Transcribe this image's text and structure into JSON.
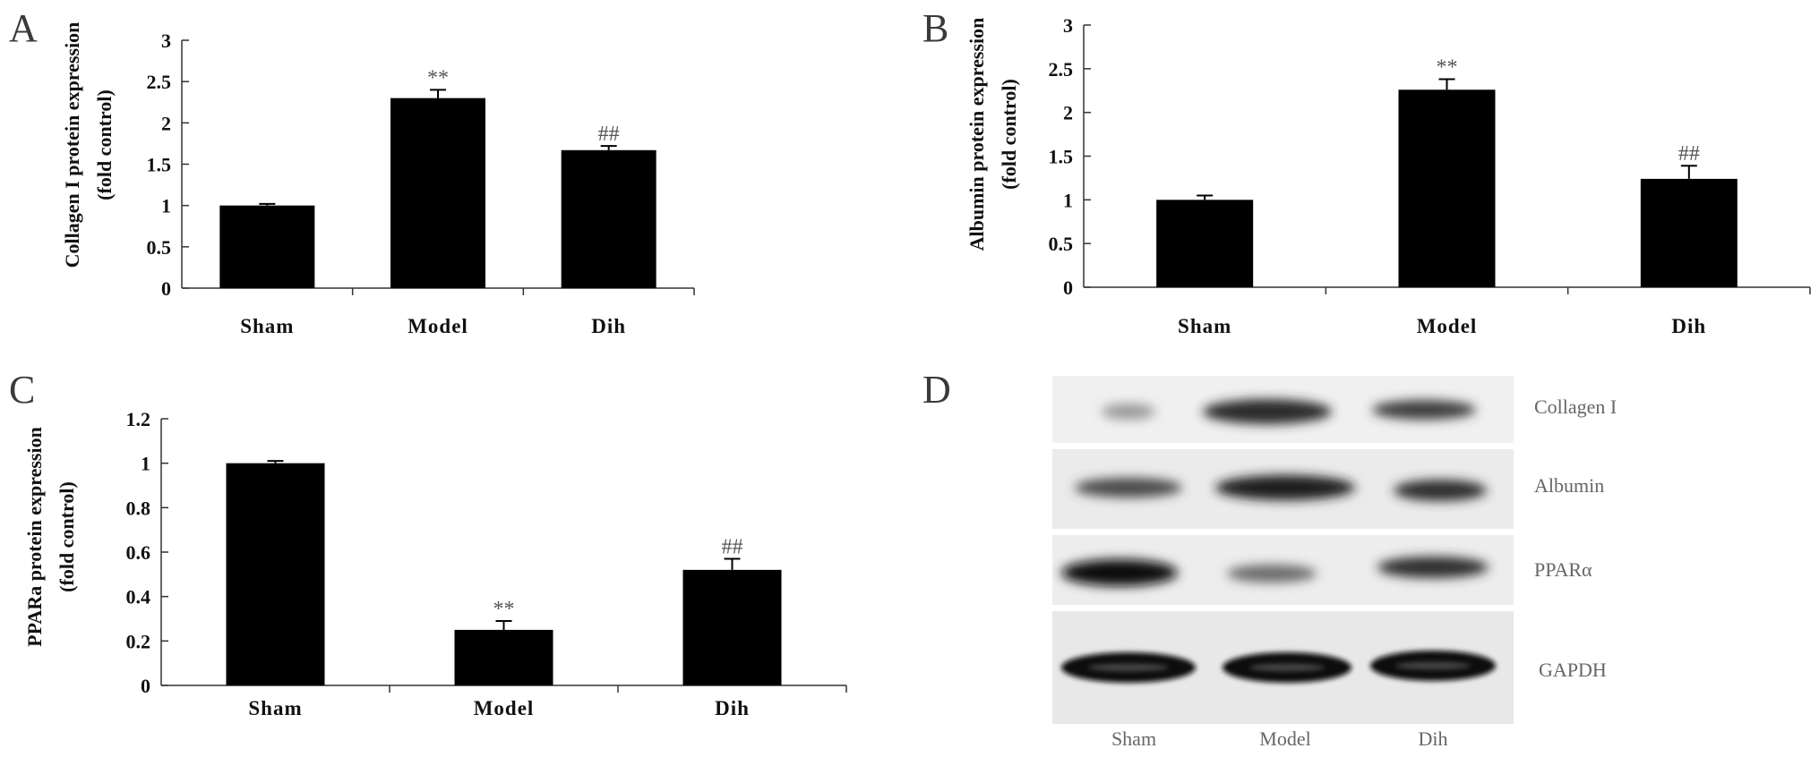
{
  "chart_data": [
    {
      "type": "bar",
      "panel": "A",
      "categories": [
        "Sham",
        "Model",
        "Dih"
      ],
      "values": [
        1.0,
        2.3,
        1.67
      ],
      "errors": [
        0.02,
        0.1,
        0.05
      ],
      "annotations": [
        "",
        "**",
        "##"
      ],
      "ylabel_line1": "Collagen I protein expression",
      "ylabel_line2": "(fold control)",
      "ylim": [
        0,
        3
      ],
      "yticks": [
        "0",
        "0.5",
        "1",
        "1.5",
        "2",
        "2.5",
        "3"
      ],
      "ytick_values": [
        0,
        0.5,
        1,
        1.5,
        2,
        2.5,
        3
      ]
    },
    {
      "type": "bar",
      "panel": "B",
      "categories": [
        "Sham",
        "Model",
        "Dih"
      ],
      "values": [
        1.0,
        2.26,
        1.24
      ],
      "errors": [
        0.05,
        0.12,
        0.15
      ],
      "annotations": [
        "",
        "**",
        "##"
      ],
      "ylabel_line1": "Albumin protein expression",
      "ylabel_line2": "(fold control)",
      "ylim": [
        0,
        3
      ],
      "yticks": [
        "0",
        "0.5",
        "1",
        "1.5",
        "2",
        "2.5",
        "3"
      ],
      "ytick_values": [
        0,
        0.5,
        1,
        1.5,
        2,
        2.5,
        3
      ]
    },
    {
      "type": "bar",
      "panel": "C",
      "categories": [
        "Sham",
        "Model",
        "Dih"
      ],
      "values": [
        1.0,
        0.25,
        0.52
      ],
      "errors": [
        0.01,
        0.04,
        0.05
      ],
      "annotations": [
        "",
        "**",
        "##"
      ],
      "ylabel_line1": "PPARa protein expression",
      "ylabel_line2": "(fold control)",
      "ylim": [
        0,
        1.2
      ],
      "yticks": [
        "0",
        "0.2",
        "0.4",
        "0.6",
        "0.8",
        "1",
        "1.2"
      ],
      "ytick_values": [
        0,
        0.2,
        0.4,
        0.6,
        0.8,
        1.0,
        1.2
      ]
    }
  ],
  "blot": {
    "panel": "D",
    "rows": [
      "Collagen I",
      "Albumin",
      "PPARα",
      "GAPDH"
    ],
    "lanes": [
      "Sham",
      "Model",
      "Dih"
    ]
  }
}
